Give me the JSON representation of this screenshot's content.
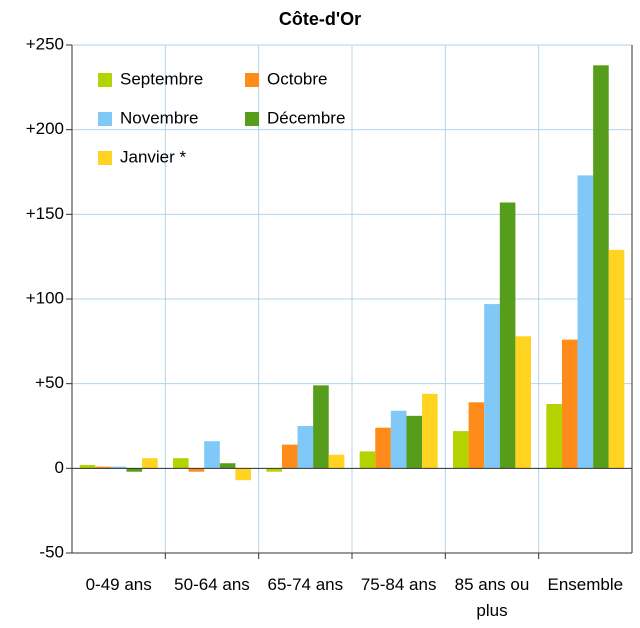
{
  "chart_data": {
    "type": "bar",
    "title": "Côte-d'Or",
    "categories": [
      "0-49 ans",
      "50-64 ans",
      "65-74 ans",
      "75-84 ans",
      "85 ans ou plus",
      "Ensemble"
    ],
    "series": [
      {
        "name": "Septembre",
        "color": "#b5d300",
        "values": [
          2,
          6,
          -2,
          10,
          22,
          38
        ]
      },
      {
        "name": "Octobre",
        "color": "#ff8c1a",
        "values": [
          1,
          -2,
          14,
          24,
          39,
          76
        ]
      },
      {
        "name": "Novembre",
        "color": "#7fc8f8",
        "values": [
          1,
          16,
          25,
          34,
          97,
          173
        ]
      },
      {
        "name": "Décembre",
        "color": "#579d1c",
        "values": [
          -2,
          3,
          49,
          31,
          157,
          238
        ]
      },
      {
        "name": "Janvier *",
        "color": "#ffd320",
        "values": [
          6,
          -7,
          8,
          44,
          78,
          129
        ]
      }
    ],
    "ylim": [
      -50,
      250
    ],
    "yticks": [
      -50,
      0,
      {
        "value": 50,
        "label": "+50"
      },
      {
        "value": 100,
        "label": "+100"
      },
      {
        "value": 150,
        "label": "+150"
      },
      {
        "value": 200,
        "label": "+200"
      },
      {
        "value": 250,
        "label": "+250"
      }
    ],
    "grid": true,
    "legend": "top-left"
  }
}
